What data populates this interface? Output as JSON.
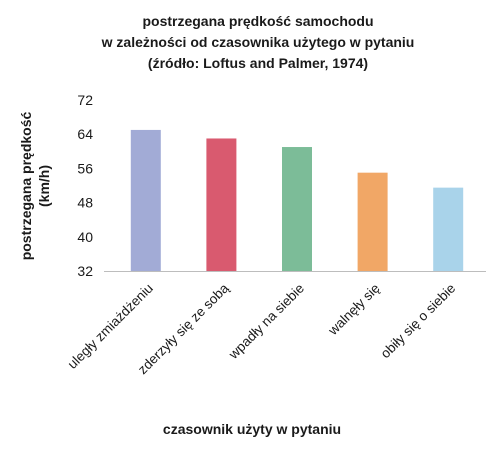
{
  "chart_data": {
    "type": "bar",
    "title": [
      "postrzegana prędkość samochodu",
      "w zależności od czasownika użytego w pytaniu",
      "(źródło: Loftus and Palmer, 1974)"
    ],
    "xlabel": "czasownik użyty w pytaniu",
    "ylabel": [
      "postrzegana prędkość",
      "(km/h)"
    ],
    "ylim": [
      32,
      72
    ],
    "yticks": [
      32,
      40,
      48,
      56,
      64,
      72
    ],
    "categories": [
      "uległy zmiażdżeniu",
      "zderzyły się ze sobą",
      "wpadły na siebie",
      "walnęły się",
      "obiły się o siebie"
    ],
    "values": [
      65,
      63,
      61,
      55,
      51.5
    ],
    "colors": [
      "#a2abd6",
      "#d95a6f",
      "#7cbc98",
      "#f1a766",
      "#a9d3ea"
    ],
    "grid": false,
    "legend": "none"
  }
}
